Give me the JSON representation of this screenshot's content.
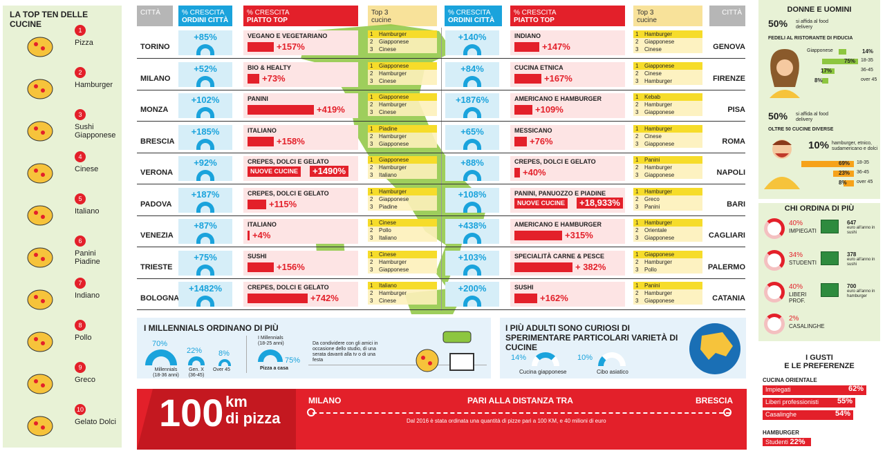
{
  "left": {
    "title": "LA TOP TEN DELLE CUCINE",
    "items": [
      {
        "num": "1",
        "name": "Pizza",
        "icon": "pizza-icon"
      },
      {
        "num": "2",
        "name": "Hamburger",
        "icon": "hamburger-icon"
      },
      {
        "num": "3",
        "name": "Sushi Giapponese",
        "icon": "sushi-icon"
      },
      {
        "num": "4",
        "name": "Cinese",
        "icon": "noodles-icon"
      },
      {
        "num": "5",
        "name": "Italiano",
        "icon": "pasta-icon"
      },
      {
        "num": "6",
        "name": "Panini Piadine",
        "icon": "sandwich-icon"
      },
      {
        "num": "7",
        "name": "Indiano",
        "icon": "curry-icon"
      },
      {
        "num": "8",
        "name": "Pollo",
        "icon": "chicken-leg-icon"
      },
      {
        "num": "9",
        "name": "Greco",
        "icon": "salad-icon"
      },
      {
        "num": "10",
        "name": "Gelato Dolci",
        "icon": "ice-cream-icon"
      }
    ]
  },
  "headers": {
    "citta": "CITTÀ",
    "crescita_ordini_1": "% CRESCITA",
    "crescita_ordini_2": "ORDINI CITTÀ",
    "crescita_piatto_1": "% CRESCITA",
    "crescita_piatto_2": "PIATTO TOP",
    "top3_1": "Top 3",
    "top3_2": "cucine"
  },
  "rows": [
    {
      "l": {
        "city": "TORINO",
        "ord": "+85%",
        "dish": "VEGANO E VEGETARIANO",
        "val": "+157%",
        "bar": 0.25,
        "top": [
          "Hamburger",
          "Giapponese",
          "Cinese"
        ]
      },
      "r": {
        "city": "GENOVA",
        "ord": "+140%",
        "dish": "INDIANO",
        "val": "+147%",
        "bar": 0.24,
        "top": [
          "Hamburger",
          "Giapponese",
          "Cinese"
        ]
      }
    },
    {
      "l": {
        "city": "MILANO",
        "ord": "+52%",
        "dish": "BIO & HEALTY",
        "val": "+73%",
        "bar": 0.11,
        "top": [
          "Giapponese",
          "Hamburger",
          "Cinese"
        ]
      },
      "r": {
        "city": "FIRENZE",
        "ord": "+84%",
        "dish": "CUCINA ETNICA",
        "val": "+167%",
        "bar": 0.26,
        "top": [
          "Giapponese",
          "Cinese",
          "Hamburger"
        ]
      }
    },
    {
      "l": {
        "city": "MONZA",
        "ord": "+102%",
        "dish": "PANINI",
        "val": "+419%",
        "bar": 0.64,
        "top": [
          "Giapponese",
          "Hamburger",
          "Cinese"
        ]
      },
      "r": {
        "city": "PISA",
        "ord": "+1876%",
        "dish": "AMERICANO E HAMBURGER",
        "val": "+109%",
        "bar": 0.17,
        "top": [
          "Kebab",
          "Hamburger",
          "Giapponese"
        ]
      }
    },
    {
      "l": {
        "city": "BRESCIA",
        "ord": "+185%",
        "dish": "ITALIANO",
        "val": "+158%",
        "bar": 0.25,
        "top": [
          "Piadine",
          "Hamburger",
          "Giapponese"
        ]
      },
      "r": {
        "city": "ROMA",
        "ord": "+65%",
        "dish": "MESSICANO",
        "val": "+76%",
        "bar": 0.12,
        "top": [
          "Hamburger",
          "Cinese",
          "Giapponese"
        ]
      }
    },
    {
      "l": {
        "city": "VERONA",
        "ord": "+92%",
        "dish": "CREPES, DOLCI E GELATO",
        "val": "+1490%",
        "nc": "NUOVE CUCINE",
        "top": [
          "Giapponese",
          "Hamburger",
          "Italiano"
        ]
      },
      "r": {
        "city": "NAPOLI",
        "ord": "+88%",
        "dish": "CREPES, DOLCI E GELATO",
        "val": "+40%",
        "bar": 0.05,
        "top": [
          "Panini",
          "Hamburger",
          "Giapponese"
        ]
      }
    },
    {
      "l": {
        "city": "PADOVA",
        "ord": "+187%",
        "dish": "CREPES, DOLCI E GELATO",
        "val": "+115%",
        "bar": 0.18,
        "top": [
          "Hamburger",
          "Giapponese",
          "Piadine"
        ]
      },
      "r": {
        "city": "BARI",
        "ord": "+108%",
        "dish": "PANINI, PANUOZZO E PIADINE",
        "val": "+18,933%",
        "nc": "NUOVE CUCINE",
        "top": [
          "Hamburger",
          "Greco",
          "Panini"
        ]
      }
    },
    {
      "l": {
        "city": "VENEZIA",
        "ord": "+87%",
        "dish": "ITALIANO",
        "val": "+4%",
        "bar": 0.01,
        "top": [
          "Cinese",
          "Pollo",
          "Italiano"
        ]
      },
      "r": {
        "city": "CAGLIARI",
        "ord": "+438%",
        "dish": "AMERICANO E HAMBURGER",
        "val": "+315%",
        "bar": 0.46,
        "top": [
          "Hamburger",
          "Orientale",
          "Giapponese"
        ]
      }
    },
    {
      "l": {
        "city": "TRIESTE",
        "ord": "+75%",
        "dish": "SUSHI",
        "val": "+156%",
        "bar": 0.25,
        "top": [
          "Cinese",
          "Hamburger",
          "Giapponese"
        ]
      },
      "r": {
        "city": "PALERMO",
        "ord": "+103%",
        "dish": "SPECIALITÀ CARNE & PESCE",
        "val": "+ 382%",
        "bar": 0.56,
        "top": [
          "Giapponese",
          "Hamburger",
          "Pollo"
        ]
      }
    },
    {
      "l": {
        "city": "BOLOGNA",
        "ord": "+1482%",
        "dish": "CREPES, DOLCI E GELATO",
        "val": "+742%",
        "bar": 0.58,
        "sep": true,
        "top": [
          "Italiano",
          "Hamburger",
          "Cinese"
        ]
      },
      "r": {
        "city": "CATANIA",
        "ord": "+200%",
        "dish": "SUSHI",
        "val": "+162%",
        "bar": 0.22,
        "top": [
          "Panini",
          "Hamburger",
          "Giapponese"
        ]
      }
    }
  ],
  "millennials": {
    "title": "I MILLENNIALS ORDINANO DI PIÙ",
    "g1_pct": "70%",
    "g1_label": "Millennials",
    "g1_sub": "(18-36 anni)",
    "g2_pct": "22%",
    "g2_label": "Gen. X",
    "g2_sub": "(36-45)",
    "g3_pct": "8%",
    "g3_label": "Over 45",
    "m_label": "I Millennials",
    "m_sub": "(18-25 anni)",
    "m_pct": "75%",
    "m_cap": "Pizza a casa",
    "note": "Da condividere con gli amici in occasione dello studio, di una serata davanti alla tv o di una festa"
  },
  "adulti": {
    "title": "I PIÙ ADULTI SONO CURIOSI DI SPERIMENTARE PARTICOLARI VARIETÀ DI CUCINE",
    "p1": "14%",
    "l1": "Cucina giapponese",
    "p2": "10%",
    "l2": "Cibo asiatico"
  },
  "pizza": {
    "big": "100",
    "km": "km",
    "di": "di pizza",
    "from": "MILANO",
    "mid": "PARI ALLA DISTANZA TRA",
    "to": "BRESCIA",
    "note": "Dal 2016 è stata ordinata una quantità di pizze pari a 100 KM, e 40 milioni di euro"
  },
  "donne": {
    "title": "DONNE E UOMINI",
    "f_pct": "50%",
    "f_txt": "si affida al food delivery",
    "f_sub": "FEDELI AL RISTORANTE DI FIDUCIA",
    "f_rows": [
      {
        "t": "Giapponese",
        "v": "14%",
        "w": 0.22
      },
      {
        "t": "",
        "v": "75%",
        "w": 1,
        "a": "18-35"
      },
      {
        "t": "",
        "v": "17%",
        "w": 0.35,
        "a": "36-45"
      },
      {
        "t": "",
        "v": "8%",
        "w": 0.18,
        "a": "over 45"
      }
    ],
    "m_pct": "50%",
    "m_txt": "si affida al food delivery",
    "m_sub": "OLTRE 50 CUCINE DIVERSE",
    "m_big": "10%",
    "m_note": "hamburger, etnico, sudamericano e dolci",
    "m_rows": [
      {
        "v": "69%",
        "a": "18-35",
        "w": 1
      },
      {
        "v": "23%",
        "a": "36-45",
        "w": 0.4
      },
      {
        "v": "8%",
        "a": "over 45",
        "w": 0.2
      }
    ]
  },
  "chi": {
    "title": "CHI ORDINA DI PIÙ",
    "items": [
      {
        "p": "40%",
        "l": "IMPIEGATI",
        "e": "647",
        "u": "euro all'anno in sushi",
        "f": 0.4
      },
      {
        "p": "34%",
        "l": "STUDENTI",
        "e": "378",
        "u": "euro all'anno in sushi",
        "f": 0.34
      },
      {
        "p": "40%",
        "l": "LIBERI PROF.",
        "e": "700",
        "u": "euro all'anno in hamburger",
        "f": 0.4
      },
      {
        "p": "2%",
        "l": "CASALINGHE",
        "e": "",
        "u": "",
        "f": 0.02
      }
    ]
  },
  "gusti": {
    "title1": "I GUSTI",
    "title2": "E LE PREFERENZE",
    "c1": "CUCINA ORIENTALE",
    "rows": [
      {
        "l": "Impiegati",
        "v": "62%",
        "w": 1
      },
      {
        "l": "Liberi professionisti",
        "v": "55%",
        "w": 0.89
      },
      {
        "l": "Casalinghe",
        "v": "54%",
        "w": 0.87
      }
    ],
    "c2": "HAMBURGER",
    "r2": {
      "l": "Studenti",
      "v": "22%"
    }
  }
}
